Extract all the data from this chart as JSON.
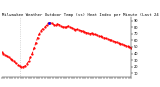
{
  "title": "Milwaukee Weather Outdoor Temp (vs) Heat Index per Minute (Last 24 Hours)",
  "bg_color": "#ffffff",
  "line_color": "#ff0000",
  "line_width": 0.7,
  "marker": ".",
  "marker_size": 1.2,
  "y_ticks": [
    10,
    20,
    30,
    40,
    50,
    60,
    70,
    80,
    90
  ],
  "ylim": [
    5,
    95
  ],
  "xlim": [
    0,
    1440
  ],
  "vline_x": 200,
  "vline_color": "#bbbbbb",
  "vline_style": ":",
  "title_fontsize": 2.8,
  "tick_fontsize": 2.5,
  "x_data": [
    0,
    20,
    40,
    60,
    80,
    100,
    120,
    140,
    160,
    180,
    200,
    220,
    240,
    260,
    280,
    300,
    320,
    340,
    360,
    380,
    400,
    420,
    440,
    460,
    480,
    500,
    520,
    540,
    560,
    580,
    600,
    620,
    640,
    660,
    680,
    700,
    720,
    740,
    760,
    780,
    800,
    820,
    840,
    860,
    880,
    900,
    920,
    940,
    960,
    980,
    1000,
    1020,
    1040,
    1060,
    1080,
    1100,
    1120,
    1140,
    1160,
    1180,
    1200,
    1220,
    1240,
    1260,
    1280,
    1300,
    1320,
    1340,
    1360,
    1380,
    1400,
    1420,
    1440
  ],
  "y_data": [
    42,
    40,
    38,
    36,
    34,
    32,
    30,
    28,
    25,
    23,
    21,
    20,
    20,
    21,
    24,
    28,
    34,
    40,
    48,
    56,
    64,
    70,
    75,
    78,
    80,
    83,
    86,
    87,
    86,
    84,
    83,
    85,
    84,
    82,
    80,
    81,
    80,
    82,
    80,
    79,
    78,
    76,
    77,
    76,
    75,
    74,
    73,
    72,
    71,
    70,
    71,
    70,
    69,
    68,
    67,
    66,
    65,
    64,
    63,
    62,
    61,
    60,
    59,
    58,
    57,
    56,
    55,
    54,
    53,
    52,
    51,
    50,
    49
  ],
  "highlight_x": 530,
  "highlight_y": 87,
  "highlight_color": "#0000ff"
}
